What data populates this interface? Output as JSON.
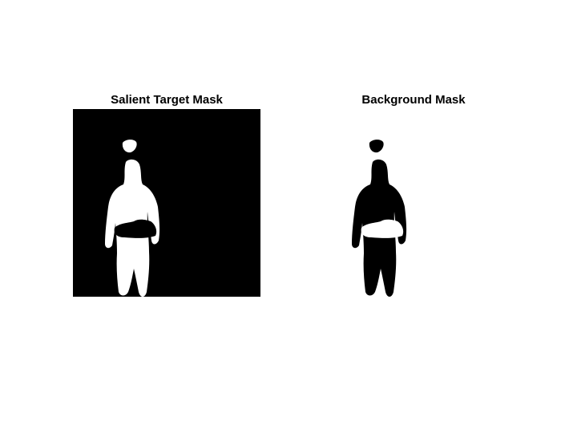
{
  "figure": {
    "panels": [
      {
        "title": "Salient Target Mask",
        "background_color": "#000000",
        "silhouette_color": "#ffffff"
      },
      {
        "title": "Background Mask",
        "background_color": "#ffffff",
        "silhouette_color": "#000000"
      }
    ]
  }
}
